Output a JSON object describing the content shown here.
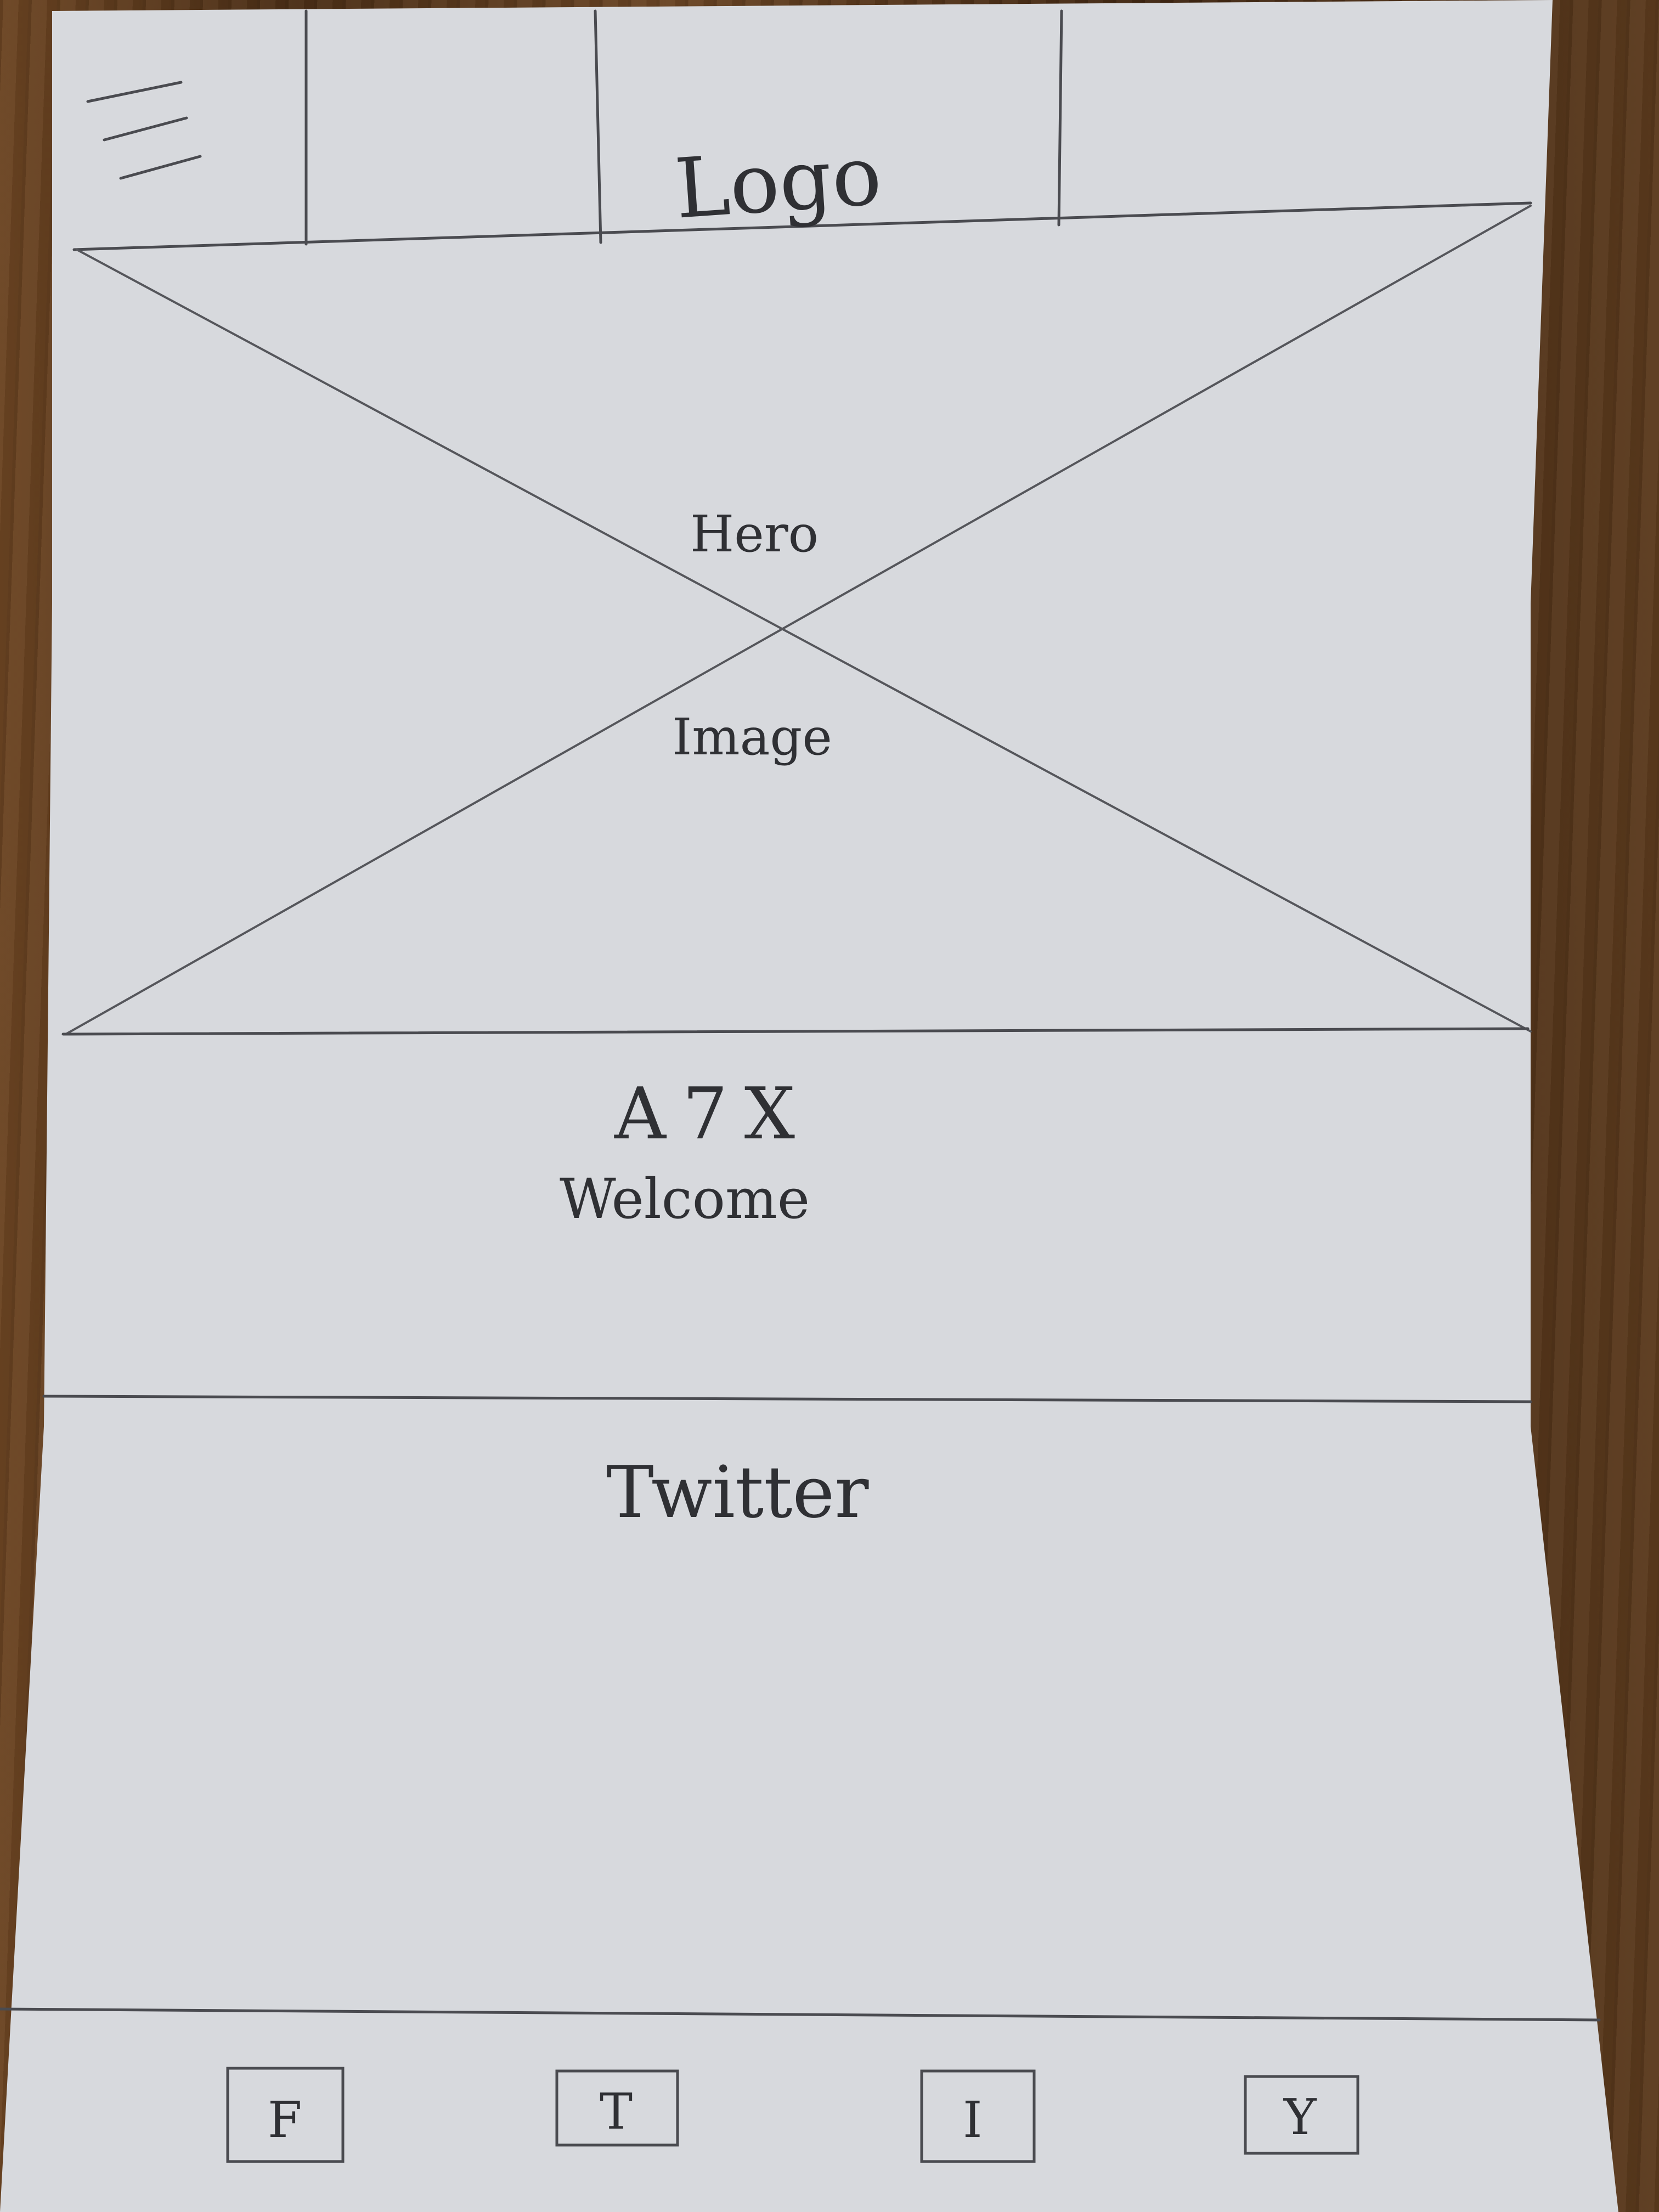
{
  "header": {
    "logo": "Logo"
  },
  "hero": {
    "line1": "Hero",
    "line2": "Image"
  },
  "welcome": {
    "title": "A7X",
    "subtitle": "Welcome"
  },
  "feed": {
    "label": "Twitter"
  },
  "footer": {
    "social": [
      {
        "letter": "F",
        "icon": "facebook-icon"
      },
      {
        "letter": "T",
        "icon": "twitter-icon"
      },
      {
        "letter": "I",
        "icon": "instagram-icon"
      },
      {
        "letter": "Y",
        "icon": "youtube-icon"
      }
    ]
  },
  "colors": {
    "paper": "#d7d9dd",
    "pencil": "#4a4b50",
    "table": "#5a3a1f"
  }
}
